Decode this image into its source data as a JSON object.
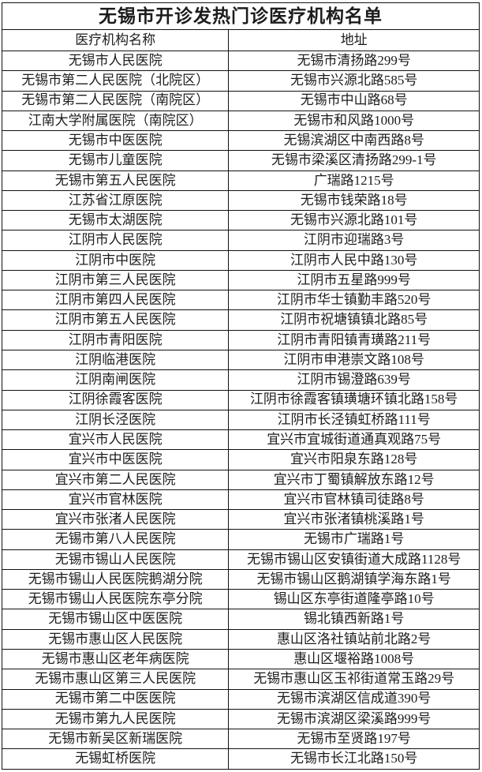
{
  "colors": {
    "border": "#111111",
    "text": "#1c1c1c",
    "background": "#ffffff"
  },
  "table": {
    "title": "无锡市开诊发热门诊医疗机构名单",
    "columns": [
      "医疗机构名称",
      "地址"
    ],
    "rows": [
      [
        "无锡市人民医院",
        "无锡市清扬路299号"
      ],
      [
        "无锡市第二人民医院（北院区）",
        "无锡市兴源北路585号"
      ],
      [
        "无锡市第二人民医院（南院区）",
        "无锡市中山路68号"
      ],
      [
        "江南大学附属医院（南院区）",
        "无锡市和风路1000号"
      ],
      [
        "无锡市中医医院",
        "无锡滨湖区中南西路8号"
      ],
      [
        "无锡市儿童医院",
        "无锡市梁溪区清扬路299-1号"
      ],
      [
        "无锡市第五人民医院",
        "广瑞路1215号"
      ],
      [
        "江苏省江原医院",
        "无锡市钱荣路18号"
      ],
      [
        "无锡市太湖医院",
        "无锡市兴源北路101号"
      ],
      [
        "江阴市人民医院",
        "江阴市迎瑞路3号"
      ],
      [
        "江阴市中医院",
        "江阴市人民中路130号"
      ],
      [
        "江阴市第三人民医院",
        "江阴市五星路999号"
      ],
      [
        "江阴市第四人民医院",
        "江阴市华士镇勤丰路520号"
      ],
      [
        "江阴市第五人民医院",
        "江阴市祝塘镇镇北路85号"
      ],
      [
        "江阴市青阳医院",
        "江阴市青阳镇青璜路211号"
      ],
      [
        "江阴临港医院",
        "江阴市申港崇文路108号"
      ],
      [
        "江阴南闸医院",
        "江阴市锡澄路639号"
      ],
      [
        "江阴徐霞客医院",
        "江阴市徐霞客镇璜塘环镇北路158号"
      ],
      [
        "江阴长泾医院",
        "江阴市长泾镇虹桥路111号"
      ],
      [
        "宜兴市人民医院",
        "宜兴市宜城街道通真观路75号"
      ],
      [
        "宜兴市中医医院",
        "宜兴市阳泉东路128号"
      ],
      [
        "宜兴市第二人民医院",
        "宜兴市丁蜀镇解放东路12号"
      ],
      [
        "宜兴市官林医院",
        "宜兴市官林镇司徒路8号"
      ],
      [
        "宜兴市张渚人民医院",
        "宜兴市张渚镇桃溪路1号"
      ],
      [
        "无锡市第八人民医院",
        "无锡市广瑞路1号"
      ],
      [
        "无锡市锡山人民医院",
        "无锡市锡山区安镇街道大成路1128号"
      ],
      [
        "无锡市锡山人民医院鹅湖分院",
        "无锡市锡山区鹅湖镇学海东路1号"
      ],
      [
        "无锡市锡山人民医院东亭分院",
        "锡山区东亭街道隆亭路10号"
      ],
      [
        "无锡市锡山区中医医院",
        "锡北镇西新路1号"
      ],
      [
        "无锡市惠山区人民医院",
        "惠山区洛社镇站前北路2号"
      ],
      [
        "无锡市惠山区老年病医院",
        "惠山区堰裕路1008号"
      ],
      [
        "无锡市惠山区第三人民医院",
        "无锡市惠山区玉祁街道常玉路29号"
      ],
      [
        "无锡市第二中医医院",
        "无锡市滨湖区信成道390号"
      ],
      [
        "无锡市第九人民医院",
        "无锡市滨湖区梁溪路999号"
      ],
      [
        "无锡市新吴区新瑞医院",
        "无锡市至贤路197号"
      ],
      [
        "无锡虹桥医院",
        "无锡市长江北路150号"
      ]
    ]
  }
}
